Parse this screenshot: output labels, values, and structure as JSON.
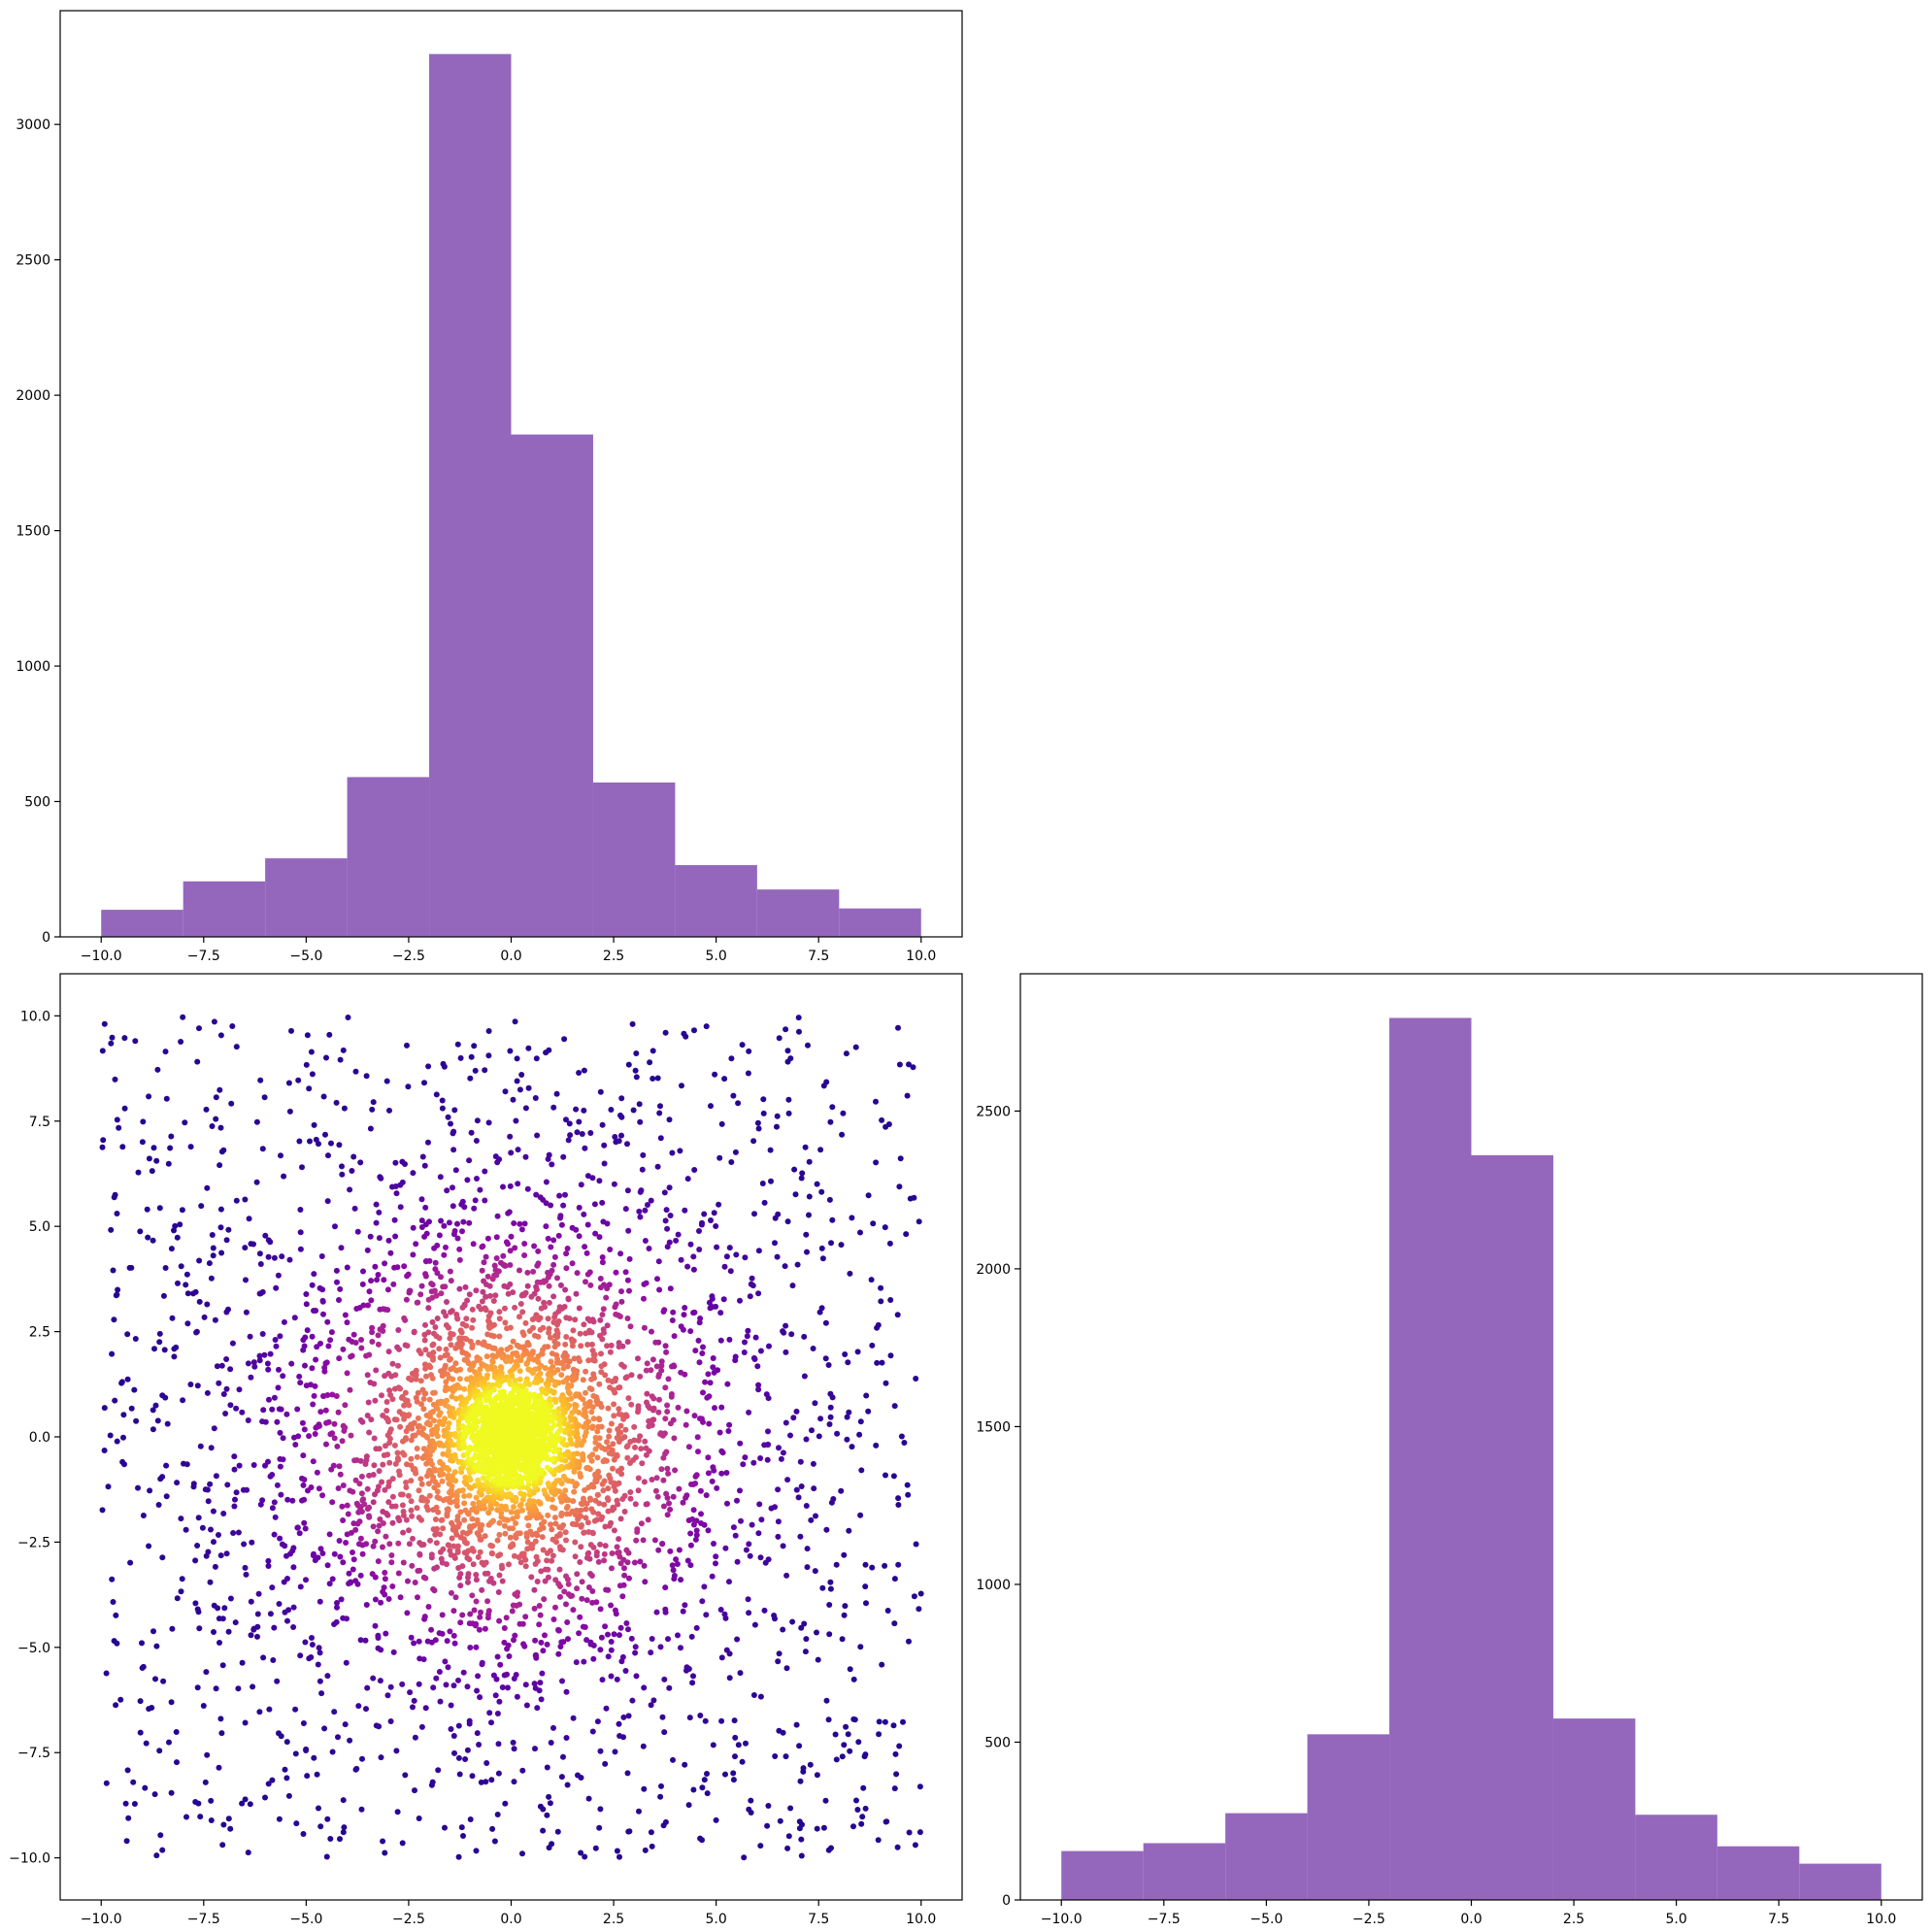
{
  "colors": {
    "bar_fill": "#9467bd",
    "scatter_colormap": "plasma",
    "axis": "#000000"
  },
  "chart_data": [
    {
      "id": "top-left-histogram",
      "type": "bar",
      "title": "",
      "xlabel": "",
      "ylabel": "",
      "bin_edges": [
        -10,
        -8,
        -6,
        -4,
        -2,
        0,
        2,
        4,
        6,
        8,
        10
      ],
      "values": [
        100,
        205,
        290,
        590,
        3260,
        1855,
        570,
        265,
        175,
        105
      ],
      "xlim": [
        -11,
        11
      ],
      "ylim": [
        0,
        3420
      ],
      "xticks": [
        -10,
        -7.5,
        -5,
        -2.5,
        0,
        2.5,
        5,
        7.5,
        10
      ],
      "xtick_labels": [
        "−10.0",
        "−7.5",
        "−5.0",
        "−2.5",
        "0.0",
        "2.5",
        "5.0",
        "7.5",
        "10.0"
      ],
      "yticks": [
        0,
        500,
        1000,
        1500,
        2000,
        2500,
        3000
      ],
      "ytick_labels": [
        "0",
        "500",
        "1000",
        "1500",
        "2000",
        "2500",
        "3000"
      ],
      "grid": false
    },
    {
      "id": "bottom-left-scatter",
      "type": "scatter",
      "title": "",
      "xlabel": "",
      "ylabel": "",
      "xlim": [
        -11,
        11
      ],
      "ylim": [
        -11,
        11
      ],
      "distribution": "about 5000 points in [-10, 10] x [-10, 10], densely concentrated around (0, 0); colour by local density using the plasma colormap (sparse = dark purple, dense centre = yellow)",
      "n_points": 5000,
      "xticks": [
        -10,
        -7.5,
        -5,
        -2.5,
        0,
        2.5,
        5,
        7.5,
        10
      ],
      "xtick_labels": [
        "−10.0",
        "−7.5",
        "−5.0",
        "−2.5",
        "0.0",
        "2.5",
        "5.0",
        "7.5",
        "10.0"
      ],
      "yticks": [
        -10,
        -7.5,
        -5,
        -2.5,
        0,
        2.5,
        5,
        7.5,
        10
      ],
      "ytick_labels": [
        "−10.0",
        "−7.5",
        "−5.0",
        "−2.5",
        "0.0",
        "2.5",
        "5.0",
        "7.5",
        "10.0"
      ],
      "grid": false
    },
    {
      "id": "bottom-right-histogram",
      "type": "bar",
      "title": "",
      "xlabel": "",
      "ylabel": "",
      "bin_edges": [
        -10,
        -8,
        -6,
        -4,
        -2,
        0,
        2,
        4,
        6,
        8,
        10
      ],
      "values": [
        155,
        180,
        275,
        525,
        2795,
        2360,
        575,
        270,
        170,
        115
      ],
      "xlim": [
        -11,
        11
      ],
      "ylim": [
        0,
        2935
      ],
      "xticks": [
        -10,
        -7.5,
        -5,
        -2.5,
        0,
        2.5,
        5,
        7.5,
        10
      ],
      "xtick_labels": [
        "−10.0",
        "−7.5",
        "−5.0",
        "−2.5",
        "0.0",
        "2.5",
        "5.0",
        "7.5",
        "10.0"
      ],
      "yticks": [
        0,
        500,
        1000,
        1500,
        2000,
        2500
      ],
      "ytick_labels": [
        "0",
        "500",
        "1000",
        "1500",
        "2000",
        "2500"
      ],
      "grid": false
    }
  ]
}
